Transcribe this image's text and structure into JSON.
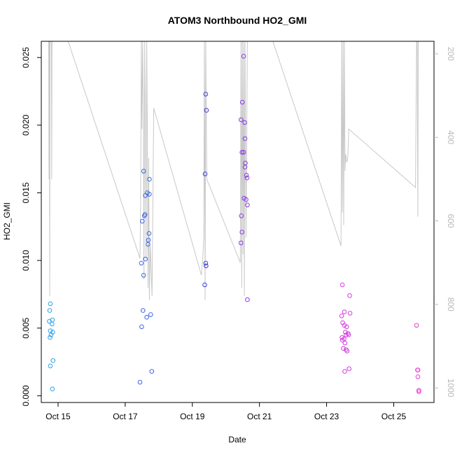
{
  "chart_data": {
    "type": "scatter",
    "title": "ATOM3 Northbound HO2_GMI",
    "xlabel": "Date",
    "ylabel": "HO2_GMI",
    "x_ticks": [
      "Oct 15",
      "Oct 17",
      "Oct 19",
      "Oct 21",
      "Oct 23",
      "Oct 25"
    ],
    "x_tick_days": [
      15,
      17,
      19,
      21,
      23,
      25
    ],
    "xlim": [
      14.5,
      26.2
    ],
    "ylim": [
      -0.0005,
      0.0262
    ],
    "y_ticks": [
      0.0,
      0.005,
      0.01,
      0.015,
      0.02,
      0.025
    ],
    "y_tick_labels": [
      "0.000",
      "0.005",
      "0.010",
      "0.015",
      "0.020",
      "0.025"
    ],
    "y2_ticks": [
      200,
      400,
      600,
      800,
      1000
    ],
    "y2_tick_labels": [
      "200",
      "400",
      "600",
      "800",
      "1000"
    ],
    "y2lim": [
      1035,
      170
    ],
    "y2_reversed": true,
    "colors": {
      "line": "#c8c8c8",
      "axis": "#000000",
      "right_axis": "#b8b8b8"
    },
    "points": [
      {
        "x": 14.75,
        "y": 0.0063,
        "color": "#2aa0e8"
      },
      {
        "x": 14.77,
        "y": 0.0068,
        "color": "#2aa0e8"
      },
      {
        "x": 14.74,
        "y": 0.0055,
        "color": "#2aa0e8"
      },
      {
        "x": 14.83,
        "y": 0.0056,
        "color": "#2aa0e8"
      },
      {
        "x": 14.82,
        "y": 0.0053,
        "color": "#2aa0e8"
      },
      {
        "x": 14.77,
        "y": 0.0048,
        "color": "#2aa0e8"
      },
      {
        "x": 14.84,
        "y": 0.0047,
        "color": "#2aa0e8"
      },
      {
        "x": 14.79,
        "y": 0.0045,
        "color": "#2aa0e8"
      },
      {
        "x": 14.76,
        "y": 0.0043,
        "color": "#2aa0e8"
      },
      {
        "x": 14.85,
        "y": 0.0026,
        "color": "#2aa0e8"
      },
      {
        "x": 14.77,
        "y": 0.0022,
        "color": "#2aa0e8"
      },
      {
        "x": 14.83,
        "y": 0.0005,
        "color": "#2aa0e8"
      },
      {
        "x": 17.55,
        "y": 0.0166,
        "color": "#3a66e8"
      },
      {
        "x": 17.72,
        "y": 0.016,
        "color": "#3a66e8"
      },
      {
        "x": 17.66,
        "y": 0.015,
        "color": "#3a66e8"
      },
      {
        "x": 17.72,
        "y": 0.0149,
        "color": "#3a66e8"
      },
      {
        "x": 17.6,
        "y": 0.0148,
        "color": "#3a66e8"
      },
      {
        "x": 17.59,
        "y": 0.0134,
        "color": "#3a66e8"
      },
      {
        "x": 17.57,
        "y": 0.0133,
        "color": "#3a66e8"
      },
      {
        "x": 17.51,
        "y": 0.0129,
        "color": "#3a66e8"
      },
      {
        "x": 17.71,
        "y": 0.012,
        "color": "#3a66e8"
      },
      {
        "x": 17.69,
        "y": 0.0115,
        "color": "#3a66e8"
      },
      {
        "x": 17.68,
        "y": 0.0112,
        "color": "#3a66e8"
      },
      {
        "x": 17.6,
        "y": 0.0101,
        "color": "#3a66e8"
      },
      {
        "x": 17.48,
        "y": 0.0098,
        "color": "#3a66e8"
      },
      {
        "x": 17.55,
        "y": 0.0089,
        "color": "#3a66e8"
      },
      {
        "x": 17.53,
        "y": 0.0063,
        "color": "#3a66e8"
      },
      {
        "x": 17.76,
        "y": 0.006,
        "color": "#3a66e8"
      },
      {
        "x": 17.64,
        "y": 0.0058,
        "color": "#3a66e8"
      },
      {
        "x": 17.49,
        "y": 0.0051,
        "color": "#3a66e8"
      },
      {
        "x": 17.79,
        "y": 0.0018,
        "color": "#3a66e8"
      },
      {
        "x": 17.44,
        "y": 0.001,
        "color": "#3a66e8"
      },
      {
        "x": 19.4,
        "y": 0.0223,
        "color": "#3a3ae0"
      },
      {
        "x": 19.42,
        "y": 0.0211,
        "color": "#3a3ae0"
      },
      {
        "x": 19.38,
        "y": 0.0164,
        "color": "#3a3ae0"
      },
      {
        "x": 19.4,
        "y": 0.0098,
        "color": "#3a3ae0"
      },
      {
        "x": 19.41,
        "y": 0.0096,
        "color": "#3a3ae0"
      },
      {
        "x": 19.37,
        "y": 0.0082,
        "color": "#3a3ae0"
      },
      {
        "x": 20.53,
        "y": 0.0251,
        "color": "#8a3ae8"
      },
      {
        "x": 20.49,
        "y": 0.0217,
        "color": "#8a3ae8"
      },
      {
        "x": 20.45,
        "y": 0.0204,
        "color": "#8a3ae8"
      },
      {
        "x": 20.56,
        "y": 0.0202,
        "color": "#8a3ae8"
      },
      {
        "x": 20.57,
        "y": 0.019,
        "color": "#8a3ae8"
      },
      {
        "x": 20.48,
        "y": 0.018,
        "color": "#8a3ae8"
      },
      {
        "x": 20.53,
        "y": 0.018,
        "color": "#8a3ae8"
      },
      {
        "x": 20.58,
        "y": 0.0172,
        "color": "#8a3ae8"
      },
      {
        "x": 20.57,
        "y": 0.0169,
        "color": "#8a3ae8"
      },
      {
        "x": 20.61,
        "y": 0.0163,
        "color": "#8a3ae8"
      },
      {
        "x": 20.63,
        "y": 0.0161,
        "color": "#8a3ae8"
      },
      {
        "x": 20.54,
        "y": 0.0146,
        "color": "#8a3ae8"
      },
      {
        "x": 20.6,
        "y": 0.0145,
        "color": "#8a3ae8"
      },
      {
        "x": 20.64,
        "y": 0.0141,
        "color": "#8a3ae8"
      },
      {
        "x": 20.46,
        "y": 0.0133,
        "color": "#8a3ae8"
      },
      {
        "x": 20.48,
        "y": 0.0121,
        "color": "#8a3ae8"
      },
      {
        "x": 20.45,
        "y": 0.0113,
        "color": "#8a3ae8"
      },
      {
        "x": 20.64,
        "y": 0.0071,
        "color": "#8a3ae8"
      },
      {
        "x": 23.47,
        "y": 0.0082,
        "color": "#d43ae0"
      },
      {
        "x": 23.69,
        "y": 0.0074,
        "color": "#d43ae0"
      },
      {
        "x": 23.53,
        "y": 0.0062,
        "color": "#d43ae0"
      },
      {
        "x": 23.7,
        "y": 0.0061,
        "color": "#d43ae0"
      },
      {
        "x": 23.45,
        "y": 0.0059,
        "color": "#d43ae0"
      },
      {
        "x": 23.48,
        "y": 0.0054,
        "color": "#d43ae0"
      },
      {
        "x": 23.53,
        "y": 0.0052,
        "color": "#d43ae0"
      },
      {
        "x": 23.6,
        "y": 0.0051,
        "color": "#d43ae0"
      },
      {
        "x": 23.56,
        "y": 0.0047,
        "color": "#d43ae0"
      },
      {
        "x": 23.64,
        "y": 0.0046,
        "color": "#d43ae0"
      },
      {
        "x": 23.58,
        "y": 0.0045,
        "color": "#d43ae0"
      },
      {
        "x": 23.66,
        "y": 0.0045,
        "color": "#d43ae0"
      },
      {
        "x": 23.46,
        "y": 0.0043,
        "color": "#d43ae0"
      },
      {
        "x": 23.52,
        "y": 0.0042,
        "color": "#d43ae0"
      },
      {
        "x": 23.47,
        "y": 0.0041,
        "color": "#d43ae0"
      },
      {
        "x": 23.55,
        "y": 0.0039,
        "color": "#d43ae0"
      },
      {
        "x": 23.5,
        "y": 0.0035,
        "color": "#d43ae0"
      },
      {
        "x": 23.58,
        "y": 0.0034,
        "color": "#d43ae0"
      },
      {
        "x": 23.61,
        "y": 0.0033,
        "color": "#d43ae0"
      },
      {
        "x": 23.67,
        "y": 0.002,
        "color": "#d43ae0"
      },
      {
        "x": 23.54,
        "y": 0.0018,
        "color": "#d43ae0"
      },
      {
        "x": 25.68,
        "y": 0.0052,
        "color": "#e83ad0"
      },
      {
        "x": 25.71,
        "y": 0.0019,
        "color": "#e83ad0"
      },
      {
        "x": 25.72,
        "y": 0.0019,
        "color": "#e83ad0"
      },
      {
        "x": 25.72,
        "y": 0.0014,
        "color": "#e83ad0"
      },
      {
        "x": 25.75,
        "y": 0.0004,
        "color": "#e83ad0"
      },
      {
        "x": 25.75,
        "y": 0.0003,
        "color": "#e83ad0"
      }
    ],
    "pressure_line": [
      [
        14.72,
        170
      ],
      [
        14.73,
        500
      ],
      [
        14.74,
        170
      ],
      [
        14.75,
        780
      ],
      [
        14.76,
        170
      ],
      [
        14.8,
        170
      ],
      [
        14.81,
        500
      ],
      [
        14.82,
        170
      ],
      [
        14.85,
        170
      ],
      [
        15.3,
        170
      ],
      [
        17.44,
        690
      ],
      [
        17.46,
        560
      ],
      [
        17.48,
        170
      ],
      [
        17.5,
        380
      ],
      [
        17.52,
        170
      ],
      [
        17.54,
        340
      ],
      [
        17.56,
        740
      ],
      [
        17.58,
        170
      ],
      [
        17.6,
        330
      ],
      [
        17.62,
        690
      ],
      [
        17.64,
        170
      ],
      [
        17.66,
        390
      ],
      [
        17.68,
        760
      ],
      [
        17.7,
        450
      ],
      [
        17.72,
        790
      ],
      [
        17.75,
        660
      ],
      [
        17.8,
        780
      ],
      [
        17.85,
        330
      ],
      [
        19.27,
        730
      ],
      [
        19.31,
        690
      ],
      [
        19.34,
        640
      ],
      [
        19.36,
        170
      ],
      [
        19.38,
        790
      ],
      [
        19.4,
        170
      ],
      [
        19.43,
        500
      ],
      [
        20.43,
        700
      ],
      [
        20.45,
        170
      ],
      [
        20.47,
        760
      ],
      [
        20.49,
        170
      ],
      [
        20.51,
        680
      ],
      [
        20.53,
        170
      ],
      [
        20.55,
        780
      ],
      [
        20.57,
        170
      ],
      [
        20.6,
        640
      ],
      [
        20.64,
        170
      ],
      [
        20.68,
        170
      ],
      [
        21.4,
        170
      ],
      [
        23.43,
        660
      ],
      [
        23.45,
        170
      ],
      [
        23.47,
        580
      ],
      [
        23.49,
        170
      ],
      [
        23.51,
        610
      ],
      [
        23.53,
        170
      ],
      [
        23.55,
        480
      ],
      [
        23.57,
        440
      ],
      [
        23.6,
        460
      ],
      [
        23.63,
        450
      ],
      [
        23.66,
        380
      ],
      [
        25.65,
        520
      ],
      [
        25.68,
        170
      ],
      [
        25.7,
        170
      ],
      [
        25.72,
        590
      ],
      [
        25.73,
        170
      ],
      [
        25.74,
        170
      ]
    ]
  }
}
